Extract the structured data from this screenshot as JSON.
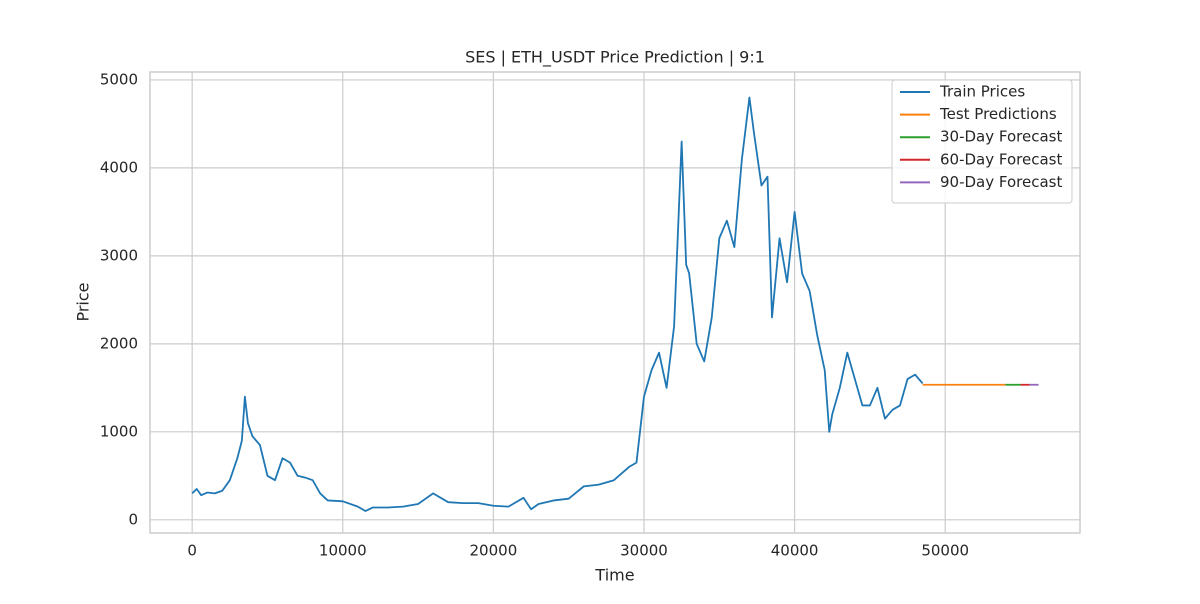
{
  "chart_data": {
    "type": "line",
    "title": "SES | ETH_USDT Price Prediction | 9:1",
    "x_label": "Time",
    "y_label": "Price",
    "xlim": [
      -2800,
      58950
    ],
    "ylim": [
      -150,
      5090
    ],
    "xticks": [
      0,
      10000,
      20000,
      30000,
      40000,
      50000
    ],
    "yticks": [
      0,
      1000,
      2000,
      3000,
      4000,
      5000
    ],
    "grid": true,
    "legend": "upper right",
    "series": [
      {
        "name": "Train Prices",
        "color": "#1f77b4",
        "x": [
          0,
          300,
          600,
          1000,
          1500,
          2000,
          2500,
          3000,
          3300,
          3500,
          3700,
          4000,
          4500,
          5000,
          5500,
          6000,
          6500,
          7000,
          7500,
          8000,
          8500,
          9000,
          10000,
          11000,
          11500,
          12000,
          13000,
          14000,
          15000,
          16000,
          16500,
          17000,
          18000,
          19000,
          20000,
          21000,
          22000,
          22500,
          23000,
          24000,
          25000,
          26000,
          27000,
          28000,
          29000,
          29500,
          30000,
          30500,
          31000,
          31500,
          32000,
          32500,
          32800,
          33000,
          33500,
          34000,
          34500,
          35000,
          35500,
          36000,
          36500,
          37000,
          37300,
          37800,
          38200,
          38500,
          39000,
          39500,
          40000,
          40500,
          41000,
          41500,
          42000,
          42300,
          42500,
          43000,
          43500,
          44000,
          44500,
          45000,
          45500,
          46000,
          46500,
          47000,
          47500,
          48000,
          48500
        ],
        "values": [
          300,
          350,
          280,
          310,
          300,
          330,
          450,
          700,
          900,
          1400,
          1100,
          950,
          850,
          500,
          450,
          700,
          650,
          500,
          480,
          450,
          300,
          220,
          210,
          150,
          100,
          140,
          140,
          150,
          180,
          300,
          250,
          200,
          190,
          190,
          160,
          150,
          250,
          120,
          180,
          220,
          240,
          380,
          400,
          450,
          600,
          650,
          1400,
          1700,
          1900,
          1500,
          2200,
          4300,
          2900,
          2800,
          2000,
          1800,
          2300,
          3200,
          3400,
          3100,
          4100,
          4800,
          4400,
          3800,
          3900,
          2300,
          3200,
          2700,
          3500,
          2800,
          2600,
          2100,
          1700,
          1000,
          1200,
          1500,
          1900,
          1600,
          1300,
          1300,
          1500,
          1150,
          1250,
          1300,
          1600,
          1650,
          1550
        ]
      },
      {
        "name": "Test Predictions",
        "color": "#ff7f0e",
        "x": [
          48500,
          54000
        ],
        "values": [
          1535,
          1535
        ]
      },
      {
        "name": "30-Day Forecast",
        "color": "#2ca02c",
        "x": [
          54000,
          55000
        ],
        "values": [
          1535,
          1535
        ]
      },
      {
        "name": "60-Day Forecast",
        "color": "#d62728",
        "x": [
          55000,
          55600
        ],
        "values": [
          1535,
          1535
        ]
      },
      {
        "name": "90-Day Forecast",
        "color": "#9467bd",
        "x": [
          55600,
          56200
        ],
        "values": [
          1535,
          1535
        ]
      }
    ]
  }
}
